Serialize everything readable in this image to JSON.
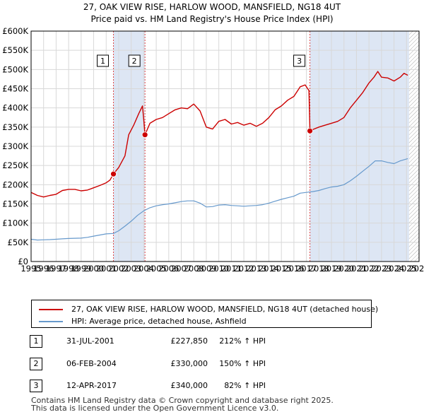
{
  "chart_data": {
    "type": "line",
    "title": "27, OAK VIEW RISE, HARLOW WOOD, MANSFIELD, NG18 4UT",
    "subtitle": "Price paid vs. HM Land Registry's House Price Index (HPI)",
    "xlim": [
      1995,
      2026
    ],
    "ylim": [
      0,
      600000
    ],
    "x_ticks": [
      "1995",
      "1996",
      "1997",
      "1998",
      "1999",
      "2000",
      "2001",
      "2002",
      "2003",
      "2004",
      "2005",
      "2006",
      "2007",
      "2008",
      "2009",
      "2010",
      "2011",
      "2012",
      "2013",
      "2014",
      "2015",
      "2016",
      "2017",
      "2018",
      "2019",
      "2020",
      "2021",
      "2022",
      "2023",
      "2024",
      "2025",
      "2026"
    ],
    "y_ticks": [
      {
        "value": 0,
        "label": "£0"
      },
      {
        "value": 50000,
        "label": "£50K"
      },
      {
        "value": 100000,
        "label": "£100K"
      },
      {
        "value": 150000,
        "label": "£150K"
      },
      {
        "value": 200000,
        "label": "£200K"
      },
      {
        "value": 250000,
        "label": "£250K"
      },
      {
        "value": 300000,
        "label": "£300K"
      },
      {
        "value": 350000,
        "label": "£350K"
      },
      {
        "value": 400000,
        "label": "£400K"
      },
      {
        "value": 450000,
        "label": "£450K"
      },
      {
        "value": 500000,
        "label": "£500K"
      },
      {
        "value": 550000,
        "label": "£550K"
      },
      {
        "value": 600000,
        "label": "£600K"
      }
    ],
    "grid": true,
    "shaded_ranges": [
      [
        2001.58,
        2004.1
      ],
      [
        2017.28,
        2025.2
      ]
    ],
    "future_hatch_from": 2025.2,
    "series": [
      {
        "name": "27, OAK VIEW RISE, HARLOW WOOD, MANSFIELD, NG18 4UT (detached house)",
        "color": "#cc0000",
        "points": [
          [
            1995.0,
            180000
          ],
          [
            1995.5,
            172000
          ],
          [
            1996.0,
            168000
          ],
          [
            1996.5,
            172000
          ],
          [
            1997.0,
            175000
          ],
          [
            1997.5,
            185000
          ],
          [
            1998.0,
            188000
          ],
          [
            1998.5,
            188000
          ],
          [
            1999.0,
            184000
          ],
          [
            1999.5,
            186000
          ],
          [
            2000.0,
            192000
          ],
          [
            2000.5,
            198000
          ],
          [
            2001.0,
            205000
          ],
          [
            2001.3,
            212000
          ],
          [
            2001.58,
            227850
          ],
          [
            2002.0,
            245000
          ],
          [
            2002.5,
            275000
          ],
          [
            2002.8,
            330000
          ],
          [
            2003.2,
            355000
          ],
          [
            2003.6,
            385000
          ],
          [
            2003.9,
            405000
          ],
          [
            2004.0,
            370000
          ],
          [
            2004.1,
            330000
          ],
          [
            2004.5,
            360000
          ],
          [
            2005.0,
            370000
          ],
          [
            2005.5,
            375000
          ],
          [
            2006.0,
            385000
          ],
          [
            2006.5,
            395000
          ],
          [
            2007.0,
            400000
          ],
          [
            2007.5,
            398000
          ],
          [
            2008.0,
            410000
          ],
          [
            2008.5,
            392000
          ],
          [
            2009.0,
            350000
          ],
          [
            2009.5,
            345000
          ],
          [
            2010.0,
            365000
          ],
          [
            2010.5,
            370000
          ],
          [
            2011.0,
            358000
          ],
          [
            2011.5,
            362000
          ],
          [
            2012.0,
            355000
          ],
          [
            2012.5,
            360000
          ],
          [
            2013.0,
            352000
          ],
          [
            2013.5,
            360000
          ],
          [
            2014.0,
            375000
          ],
          [
            2014.5,
            395000
          ],
          [
            2015.0,
            405000
          ],
          [
            2015.5,
            420000
          ],
          [
            2016.0,
            430000
          ],
          [
            2016.5,
            455000
          ],
          [
            2016.9,
            460000
          ],
          [
            2017.2,
            445000
          ],
          [
            2017.28,
            340000
          ],
          [
            2017.6,
            345000
          ],
          [
            2018.0,
            350000
          ],
          [
            2018.5,
            355000
          ],
          [
            2019.0,
            360000
          ],
          [
            2019.5,
            365000
          ],
          [
            2020.0,
            375000
          ],
          [
            2020.5,
            400000
          ],
          [
            2021.0,
            420000
          ],
          [
            2021.5,
            440000
          ],
          [
            2022.0,
            465000
          ],
          [
            2022.4,
            480000
          ],
          [
            2022.7,
            495000
          ],
          [
            2023.0,
            480000
          ],
          [
            2023.5,
            478000
          ],
          [
            2024.0,
            470000
          ],
          [
            2024.5,
            480000
          ],
          [
            2024.8,
            490000
          ],
          [
            2025.1,
            485000
          ]
        ]
      },
      {
        "name": "HPI: Average price, detached house, Ashfield",
        "color": "#6699cc",
        "points": [
          [
            1995.0,
            58000
          ],
          [
            1995.5,
            56000
          ],
          [
            1996.0,
            56500
          ],
          [
            1996.5,
            57000
          ],
          [
            1997.0,
            58000
          ],
          [
            1997.5,
            59000
          ],
          [
            1998.0,
            60000
          ],
          [
            1998.5,
            60500
          ],
          [
            1999.0,
            61000
          ],
          [
            1999.5,
            63000
          ],
          [
            2000.0,
            66000
          ],
          [
            2000.5,
            69000
          ],
          [
            2001.0,
            72000
          ],
          [
            2001.58,
            73000
          ],
          [
            2002.0,
            80000
          ],
          [
            2002.5,
            92000
          ],
          [
            2003.0,
            105000
          ],
          [
            2003.5,
            120000
          ],
          [
            2004.0,
            132000
          ],
          [
            2004.5,
            140000
          ],
          [
            2005.0,
            145000
          ],
          [
            2005.5,
            148000
          ],
          [
            2006.0,
            150000
          ],
          [
            2006.5,
            153000
          ],
          [
            2007.0,
            156000
          ],
          [
            2007.5,
            158000
          ],
          [
            2008.0,
            158000
          ],
          [
            2008.5,
            152000
          ],
          [
            2009.0,
            142000
          ],
          [
            2009.5,
            143000
          ],
          [
            2010.0,
            147000
          ],
          [
            2010.5,
            148000
          ],
          [
            2011.0,
            146000
          ],
          [
            2011.5,
            145000
          ],
          [
            2012.0,
            144000
          ],
          [
            2012.5,
            145000
          ],
          [
            2013.0,
            146000
          ],
          [
            2013.5,
            148000
          ],
          [
            2014.0,
            152000
          ],
          [
            2014.5,
            157000
          ],
          [
            2015.0,
            162000
          ],
          [
            2015.5,
            166000
          ],
          [
            2016.0,
            170000
          ],
          [
            2016.5,
            178000
          ],
          [
            2017.0,
            180000
          ],
          [
            2017.5,
            182000
          ],
          [
            2018.0,
            185000
          ],
          [
            2018.5,
            190000
          ],
          [
            2019.0,
            194000
          ],
          [
            2019.5,
            196000
          ],
          [
            2020.0,
            200000
          ],
          [
            2020.5,
            210000
          ],
          [
            2021.0,
            222000
          ],
          [
            2021.5,
            235000
          ],
          [
            2022.0,
            248000
          ],
          [
            2022.5,
            262000
          ],
          [
            2023.0,
            262000
          ],
          [
            2023.5,
            258000
          ],
          [
            2024.0,
            255000
          ],
          [
            2024.5,
            262000
          ],
          [
            2025.1,
            268000
          ]
        ]
      }
    ],
    "sales": [
      {
        "label": "1",
        "x": 2001.58,
        "value": 227850,
        "date": "31-JUL-2001",
        "price": "£227,850",
        "hpi": "212% ↑ HPI"
      },
      {
        "label": "2",
        "x": 2004.1,
        "value": 330000,
        "date": "06-FEB-2004",
        "price": "£330,000",
        "hpi": "150% ↑ HPI"
      },
      {
        "label": "3",
        "x": 2017.28,
        "value": 340000,
        "date": "12-APR-2017",
        "price": "£340,000",
        "hpi": "82% ↑ HPI"
      }
    ],
    "legend_position": "below"
  },
  "footer": {
    "line1": "Contains HM Land Registry data © Crown copyright and database right 2025.",
    "line2": "This data is licensed under the Open Government Licence v3.0."
  }
}
